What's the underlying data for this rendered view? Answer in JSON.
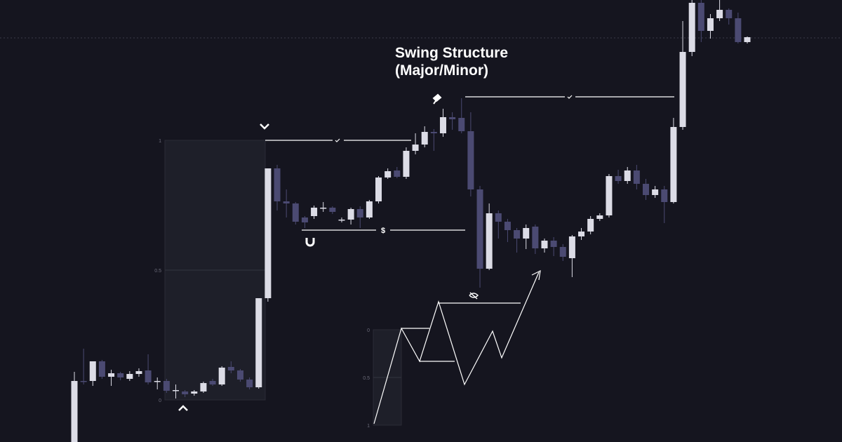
{
  "chart_data": {
    "type": "candlestick",
    "title": "Swing Structure",
    "subtitle": "(Major/Minor)",
    "ylim": [
      0,
      630
    ],
    "open": [
      0,
      87,
      87,
      115,
      93,
      98,
      90,
      97,
      102,
      87,
      87,
      74,
      72,
      69,
      72,
      87,
      82,
      107,
      102,
      89,
      78,
      205,
      390,
      343,
      340,
      320,
      322,
      334,
      334,
      317,
      317,
      332,
      320,
      343,
      377,
      387,
      378,
      415,
      424,
      442,
      440,
      463,
      462,
      443,
      360,
      247,
      326,
      314,
      302,
      290,
      307,
      276,
      287,
      278,
      262,
      293,
      300,
      318,
      323,
      379,
      372,
      387,
      368,
      352,
      360,
      342,
      449,
      556,
      626,
      586,
      604,
      616,
      604,
      570
    ],
    "high": [
      100,
      133,
      115,
      117,
      103,
      100,
      101,
      105,
      125,
      92,
      90,
      82,
      74,
      74,
      86,
      90,
      108,
      115,
      104,
      92,
      205,
      390,
      395,
      360,
      342,
      322,
      337,
      342,
      336,
      320,
      334,
      336,
      345,
      379,
      390,
      392,
      420,
      440,
      450,
      446,
      475,
      470,
      490,
      470,
      365,
      340,
      330,
      318,
      305,
      310,
      310,
      290,
      292,
      282,
      295,
      305,
      322,
      326,
      382,
      388,
      392,
      395,
      375,
      365,
      365,
      462,
      600,
      630,
      630,
      610,
      630,
      618,
      612,
      578
    ],
    "low": [
      0,
      82,
      80,
      90,
      80,
      88,
      87,
      93,
      82,
      75,
      70,
      62,
      64,
      66,
      70,
      80,
      80,
      98,
      86,
      75,
      76,
      200,
      330,
      320,
      310,
      305,
      318,
      328,
      325,
      313,
      310,
      305,
      318,
      340,
      375,
      376,
      375,
      410,
      420,
      415,
      435,
      445,
      440,
      350,
      220,
      245,
      290,
      285,
      270,
      275,
      268,
      270,
      265,
      258,
      235,
      288,
      296,
      315,
      320,
      368,
      368,
      360,
      345,
      348,
      312,
      340,
      445,
      550,
      570,
      575,
      600,
      595,
      568,
      568
    ],
    "close": [
      87,
      86,
      115,
      93,
      98,
      92,
      97,
      101,
      85,
      87,
      73,
      74,
      68,
      72,
      84,
      82,
      106,
      102,
      89,
      78,
      205,
      390,
      343,
      340,
      314,
      313,
      334,
      334,
      328,
      317,
      332,
      320,
      343,
      377,
      386,
      378,
      415,
      424,
      442,
      440,
      463,
      460,
      443,
      360,
      247,
      326,
      314,
      302,
      290,
      305,
      276,
      287,
      278,
      264,
      293,
      300,
      318,
      323,
      379,
      372,
      387,
      368,
      352,
      360,
      342,
      449,
      556,
      626,
      586,
      604,
      616,
      604,
      570,
      577
    ],
    "up_color": "#dcdce6",
    "down_color": "#4b4a72",
    "fib_levels": [
      1,
      0.5,
      0
    ],
    "mini_fib_levels": [
      0,
      0.5,
      1
    ],
    "liquidity_label": "$"
  }
}
